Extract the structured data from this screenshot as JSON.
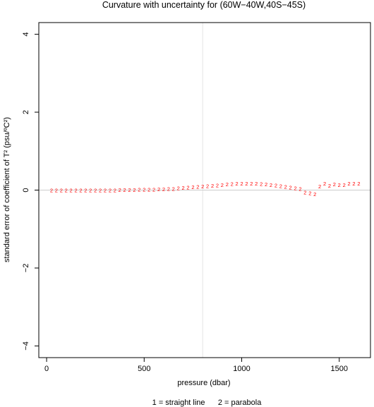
{
  "chart_data": {
    "type": "scatter",
    "title": "Curvature with uncertainty for (60W−40W,40S−45S)",
    "xlabel": "pressure (dbar)",
    "ylabel": "standard error of coefficient of T² (psu/ºC²)",
    "xlim": [
      -40,
      1660
    ],
    "ylim": [
      -4.3,
      4.3
    ],
    "x_ticks": [
      0,
      500,
      1000,
      1500
    ],
    "x_tick_labels": [
      "0",
      "500",
      "1000",
      "1500"
    ],
    "y_ticks": [
      -4,
      -2,
      0,
      2,
      4
    ],
    "y_tick_labels": [
      "−4",
      "−2",
      "0",
      "2",
      "4"
    ],
    "hline_y": 0,
    "vline_x": 800,
    "point_symbol": "2",
    "point_color": "#ff0000",
    "legend_text": "1 = straight line      2 = parabola",
    "legend_placement": "bottom-center",
    "grid": false,
    "series": [
      {
        "x": [
          25,
          50,
          75,
          100,
          125,
          150,
          175,
          200,
          225,
          250,
          275,
          300,
          325,
          350,
          375,
          400,
          425,
          450,
          475,
          500,
          525,
          550,
          575,
          600,
          625,
          650,
          675,
          700,
          725,
          750,
          775,
          800,
          825,
          850,
          875,
          900,
          925,
          950,
          975,
          1000,
          1025,
          1050,
          1075,
          1100,
          1125,
          1150,
          1175,
          1200,
          1225,
          1250,
          1275,
          1300,
          1325,
          1350,
          1375,
          1400,
          1425,
          1450,
          1475,
          1500,
          1525,
          1550,
          1575,
          1600
        ],
        "y": [
          0.0,
          0.0,
          0.0,
          0.0,
          0.0,
          0.0,
          0.0,
          0.0,
          0.0,
          0.0,
          0.0,
          0.0,
          0.0,
          0.0,
          0.01,
          0.01,
          0.01,
          0.01,
          0.02,
          0.02,
          0.02,
          0.02,
          0.03,
          0.03,
          0.04,
          0.04,
          0.05,
          0.06,
          0.07,
          0.08,
          0.09,
          0.1,
          0.11,
          0.12,
          0.13,
          0.14,
          0.15,
          0.16,
          0.17,
          0.17,
          0.17,
          0.17,
          0.17,
          0.16,
          0.15,
          0.14,
          0.13,
          0.11,
          0.09,
          0.07,
          0.05,
          0.04,
          -0.05,
          -0.07,
          -0.1,
          0.1,
          0.17,
          0.12,
          0.15,
          0.14,
          0.14,
          0.17,
          0.17,
          0.17
        ]
      }
    ]
  }
}
